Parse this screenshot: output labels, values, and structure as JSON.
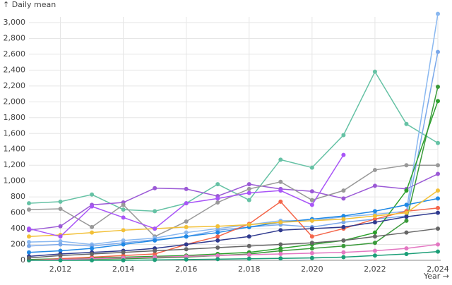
{
  "chart_data": {
    "type": "line",
    "y_label": "↑ Daily mean",
    "x_label": "Year →",
    "grid": true,
    "xlim": [
      2011,
      2024
    ],
    "ylim": [
      0,
      3000
    ],
    "xticks": [
      {
        "value": 2012,
        "label": "2,012"
      },
      {
        "value": 2014,
        "label": "2,014"
      },
      {
        "value": 2016,
        "label": "2,016"
      },
      {
        "value": 2018,
        "label": "2,018"
      },
      {
        "value": 2020,
        "label": "2,020"
      },
      {
        "value": 2022,
        "label": "2,022"
      },
      {
        "value": 2024,
        "label": "2,024"
      }
    ],
    "yticks": [
      0,
      200,
      400,
      600,
      800,
      {
        "value": 1000,
        "label": "1,000"
      },
      {
        "value": 1200,
        "label": "1,200"
      },
      {
        "value": 1400,
        "label": "1,400"
      },
      {
        "value": 1600,
        "label": "1,600"
      },
      {
        "value": 1800,
        "label": "1,800"
      },
      {
        "value": 2000,
        "label": "2,000"
      },
      {
        "value": 2200,
        "label": "2,200"
      },
      {
        "value": 2400,
        "label": "2,400"
      },
      {
        "value": 2600,
        "label": "2,600"
      },
      {
        "value": 2800,
        "label": "2,800"
      },
      {
        "value": 3000,
        "label": "3,000"
      }
    ],
    "x": [
      2011,
      2012,
      2013,
      2014,
      2015,
      2016,
      2017,
      2018,
      2019,
      2020,
      2021,
      2022,
      2023,
      2024
    ],
    "series": [
      {
        "color": "#66c2a5",
        "values": [
          720,
          740,
          830,
          640,
          620,
          720,
          960,
          760,
          1270,
          1170,
          1580,
          2380,
          1720,
          1480
        ]
      },
      {
        "color": "#9b59d6",
        "values": [
          380,
          430,
          700,
          730,
          910,
          900,
          810,
          960,
          900,
          870,
          780,
          940,
          900,
          1090
        ]
      },
      {
        "color": "#999999",
        "values": [
          640,
          650,
          420,
          700,
          300,
          490,
          730,
          900,
          990,
          760,
          880,
          1140,
          1200,
          1200
        ]
      },
      {
        "color": "#8ab8f0",
        "values": [
          230,
          240,
          200,
          250,
          280,
          350,
          400,
          450,
          500,
          500,
          550,
          580,
          620,
          3110
        ]
      },
      {
        "color": "#7aa8ea",
        "values": [
          180,
          200,
          180,
          220,
          260,
          300,
          380,
          420,
          450,
          420,
          480,
          520,
          560,
          2630
        ]
      },
      {
        "color": "#2ca02c",
        "values": [
          10,
          20,
          30,
          40,
          50,
          60,
          80,
          100,
          150,
          200,
          250,
          350,
          880,
          2010
        ]
      },
      {
        "color": "#3a9a3a",
        "values": [
          5,
          10,
          15,
          20,
          30,
          40,
          60,
          80,
          120,
          150,
          180,
          220,
          500,
          2190
        ]
      },
      {
        "color": "#1e88e5",
        "values": [
          100,
          120,
          150,
          200,
          250,
          300,
          350,
          420,
          480,
          520,
          560,
          620,
          700,
          780
        ]
      },
      {
        "color": "#f4664a",
        "values": [
          0,
          20,
          40,
          60,
          80,
          200,
          300,
          460,
          740,
          300,
          400,
          520,
          620,
          660
        ]
      },
      {
        "color": "#f2c037",
        "values": [
          300,
          320,
          350,
          380,
          400,
          420,
          430,
          450,
          480,
          500,
          520,
          560,
          600,
          880
        ]
      },
      {
        "color": "#2f3a8f",
        "values": [
          50,
          80,
          100,
          120,
          150,
          200,
          250,
          300,
          380,
          400,
          420,
          480,
          550,
          600
        ]
      },
      {
        "color": "#e377c2",
        "values": [
          0,
          10,
          20,
          30,
          40,
          50,
          60,
          70,
          80,
          90,
          100,
          120,
          150,
          200
        ]
      },
      {
        "color": "#a855f7",
        "values": [
          400,
          300,
          680,
          540,
          400,
          720,
          780,
          850,
          880,
          700,
          1330,
          null,
          null,
          null
        ]
      },
      {
        "color": "#1b9e77",
        "values": [
          0,
          0,
          0,
          0,
          5,
          10,
          15,
          20,
          25,
          30,
          40,
          60,
          80,
          110
        ]
      },
      {
        "color": "#666666",
        "values": [
          30,
          60,
          80,
          100,
          120,
          140,
          160,
          180,
          200,
          220,
          250,
          300,
          350,
          400
        ]
      }
    ]
  }
}
